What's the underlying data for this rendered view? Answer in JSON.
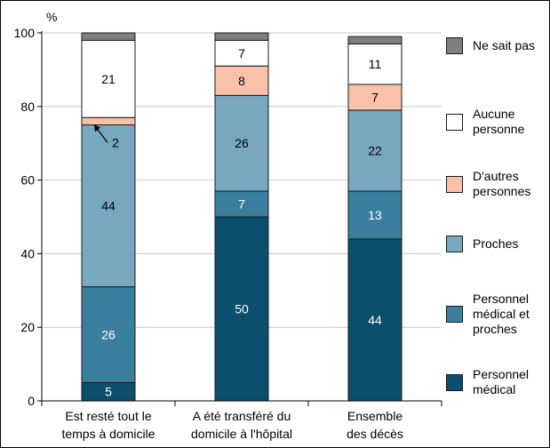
{
  "chart_data": {
    "type": "bar",
    "stacked": true,
    "ylabel": "%",
    "ylim": [
      0,
      100
    ],
    "yticks": [
      0,
      20,
      40,
      60,
      80,
      100
    ],
    "grid": true,
    "legend_position": "right",
    "categories": [
      "Est resté tout le\ntemps à domicile",
      "A été transféré du\ndomicile à l'hôpital",
      "Ensemble\ndes décès"
    ],
    "series": [
      {
        "name": "Personnel\nmédical",
        "color": "#0b4f6c",
        "label_color": "#ffffff",
        "values": [
          5,
          50,
          44
        ],
        "labels": [
          "5",
          "50",
          "44"
        ]
      },
      {
        "name": "Personnel\nmédical et\nproches",
        "color": "#3b7f9e",
        "label_color": "#ffffff",
        "values": [
          26,
          7,
          13
        ],
        "labels": [
          "26",
          "7",
          "13"
        ]
      },
      {
        "name": "Proches",
        "color": "#78a7c0",
        "label_color": "#000000",
        "values": [
          44,
          26,
          22
        ],
        "labels": [
          "44",
          "26",
          "22"
        ]
      },
      {
        "name": "D'autres\npersonnes",
        "color": "#f9c1a8",
        "label_color": "#000000",
        "values": [
          2,
          8,
          7
        ],
        "labels": [
          "",
          "8",
          "7"
        ]
      },
      {
        "name": "Aucune\npersonne",
        "color": "#ffffff",
        "label_color": "#000000",
        "values": [
          21,
          7,
          11
        ],
        "labels": [
          "21",
          "7",
          "11"
        ]
      },
      {
        "name": "Ne sait pas",
        "color": "#7f7f7f",
        "label_color": "#000000",
        "values": [
          2,
          2,
          2
        ],
        "labels": [
          "",
          "",
          ""
        ]
      }
    ],
    "annotations": [
      {
        "text": "2",
        "category_index": 0,
        "series_index": 3
      }
    ]
  }
}
